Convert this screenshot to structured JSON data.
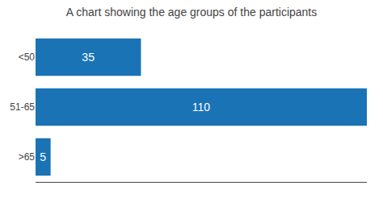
{
  "chart_data": {
    "type": "bar",
    "orientation": "horizontal",
    "title": "A chart showing the age groups of the participants",
    "categories": [
      "<50",
      "51-65",
      ">65"
    ],
    "values": [
      35,
      110,
      5
    ],
    "color": "#1a73b5",
    "xlim": [
      0,
      110
    ],
    "grid": false,
    "data_labels": true,
    "tick_labels": "y"
  }
}
